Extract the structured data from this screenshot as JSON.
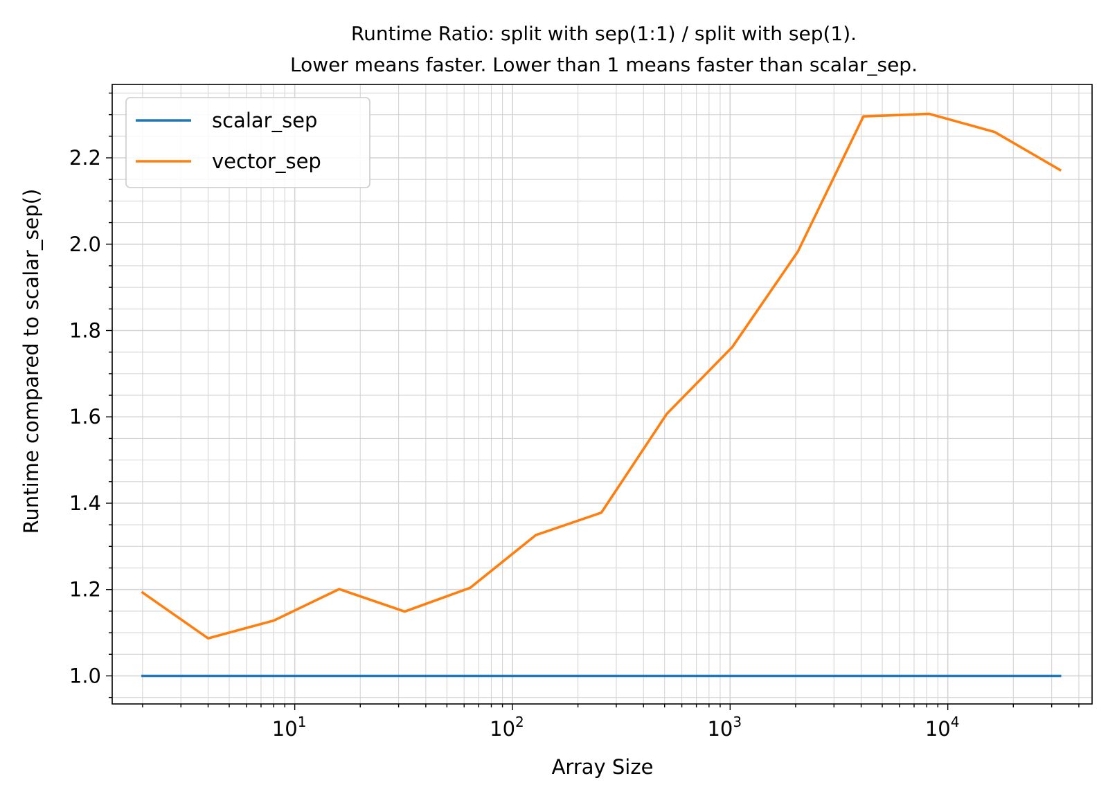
{
  "chart_data": {
    "type": "line",
    "title": "Runtime Ratio: split with sep(1:1) / split with sep(1).",
    "subtitle": "Lower means faster. Lower than 1 means faster than scalar_sep.",
    "xlabel": "Array Size",
    "ylabel": "Runtime compared to scalar_sep()",
    "x_scale": "log",
    "xlim": [
      1.45,
      46000
    ],
    "ylim": [
      0.935,
      2.37
    ],
    "x_ticks": [
      {
        "value": 10,
        "base": "10",
        "exp": "1"
      },
      {
        "value": 100,
        "base": "10",
        "exp": "2"
      },
      {
        "value": 1000,
        "base": "10",
        "exp": "3"
      },
      {
        "value": 10000,
        "base": "10",
        "exp": "4"
      }
    ],
    "y_ticks": [
      {
        "value": 1.0,
        "label": "1.0"
      },
      {
        "value": 1.2,
        "label": "1.2"
      },
      {
        "value": 1.4,
        "label": "1.4"
      },
      {
        "value": 1.6,
        "label": "1.6"
      },
      {
        "value": 1.8,
        "label": "1.8"
      },
      {
        "value": 2.0,
        "label": "2.0"
      },
      {
        "value": 2.2,
        "label": "2.2"
      }
    ],
    "y_minor_step": 0.05,
    "grid": true,
    "legend_position": "top-left",
    "x": [
      2,
      4,
      8,
      16,
      32,
      64,
      128,
      256,
      512,
      1024,
      2048,
      4096,
      8192,
      16384,
      32768
    ],
    "series": [
      {
        "name": "scalar_sep",
        "color": "#1f77b4",
        "values": [
          1,
          1,
          1,
          1,
          1,
          1,
          1,
          1,
          1,
          1,
          1,
          1,
          1,
          1,
          1
        ]
      },
      {
        "name": "vector_sep",
        "color": "#ff7f0e",
        "values": [
          1.193,
          1.087,
          1.128,
          1.201,
          1.149,
          1.204,
          1.326,
          1.378,
          1.607,
          1.762,
          1.983,
          2.296,
          2.302,
          2.26,
          2.172
        ]
      }
    ]
  }
}
